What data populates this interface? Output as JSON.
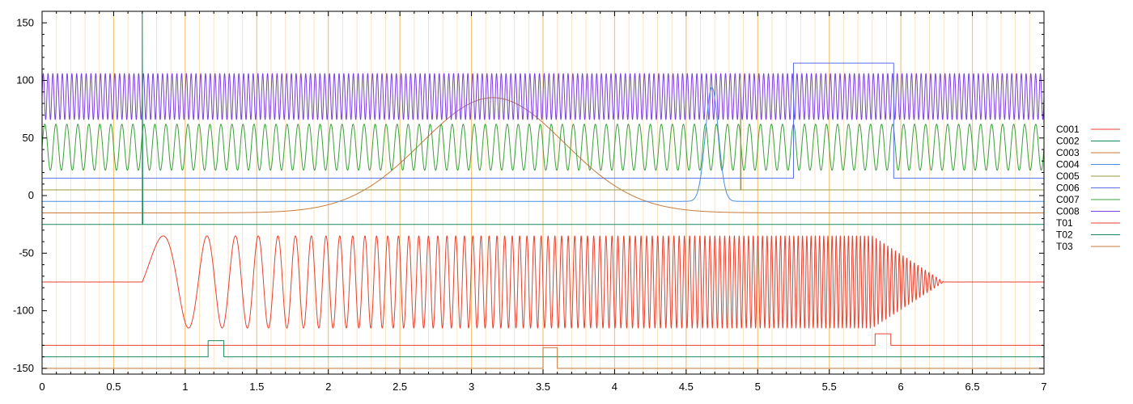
{
  "chart_data": {
    "type": "line",
    "title": "",
    "xlabel": "",
    "ylabel": "",
    "xlim": [
      0,
      7
    ],
    "ylim": [
      -155,
      160
    ],
    "grid": true,
    "legend_position": "right",
    "x_ticks": [
      0,
      0.5,
      1,
      1.5,
      2,
      2.5,
      3,
      3.5,
      4,
      4.5,
      5,
      5.5,
      6,
      6.5,
      7
    ],
    "x_tick_labels": [
      "0",
      "0.5",
      "1",
      "1.5",
      "2",
      "2.5",
      "3",
      "3.5",
      "4",
      "4.5",
      "5",
      "5.5",
      "6",
      "6.5",
      "7"
    ],
    "y_ticks": [
      150,
      100,
      50,
      0,
      -50,
      -100,
      -150
    ],
    "y_tick_labels": [
      "150",
      "100",
      "50",
      "0",
      "-50",
      "-100",
      "-150"
    ],
    "series": [
      {
        "name": "C001",
        "color": "#e8412e",
        "kind": "chirp",
        "baseline": -75,
        "amplitude": 40,
        "start": 0.7,
        "end": 6.3,
        "f0": 1.2,
        "f1": 40
      },
      {
        "name": "C002",
        "color": "#1a8a5a",
        "kind": "spike",
        "baseline": -25,
        "peak": 160,
        "at": 0.7
      },
      {
        "name": "C003",
        "color": "#c87a3a",
        "kind": "gaussian",
        "baseline": -15,
        "peak": 85,
        "center": 3.15,
        "sigma": 0.5
      },
      {
        "name": "C004",
        "color": "#4a8ee0",
        "kind": "narrow-gaussian",
        "baseline": -5,
        "peak": 94,
        "center": 4.68,
        "sigma": 0.045
      },
      {
        "name": "C005",
        "color": "#9a9a40",
        "kind": "spike",
        "baseline": 5,
        "peak": 104,
        "at": 4.88
      },
      {
        "name": "C006",
        "color": "#5a6ee8",
        "kind": "step",
        "baseline": 15,
        "high": 115,
        "start": 5.25,
        "end": 5.95
      },
      {
        "name": "C007",
        "color": "#3aa03a",
        "kind": "sine",
        "center": 42,
        "amplitude": 20,
        "frequency": 13
      },
      {
        "name": "C008",
        "color": "#7a40e0",
        "kind": "sine",
        "center": 86,
        "amplitude": 20,
        "frequency": 30
      },
      {
        "name": "T01",
        "color": "#e8412e",
        "kind": "pulse",
        "baseline": -130,
        "high": -120,
        "start": 5.82,
        "end": 5.93
      },
      {
        "name": "T02",
        "color": "#1a8a5a",
        "kind": "pulse",
        "baseline": -140,
        "high": -126,
        "start": 1.16,
        "end": 1.27
      },
      {
        "name": "T03",
        "color": "#c87a3a",
        "kind": "pulse",
        "baseline": -150,
        "high": -132,
        "start": 3.5,
        "end": 3.6
      }
    ]
  }
}
